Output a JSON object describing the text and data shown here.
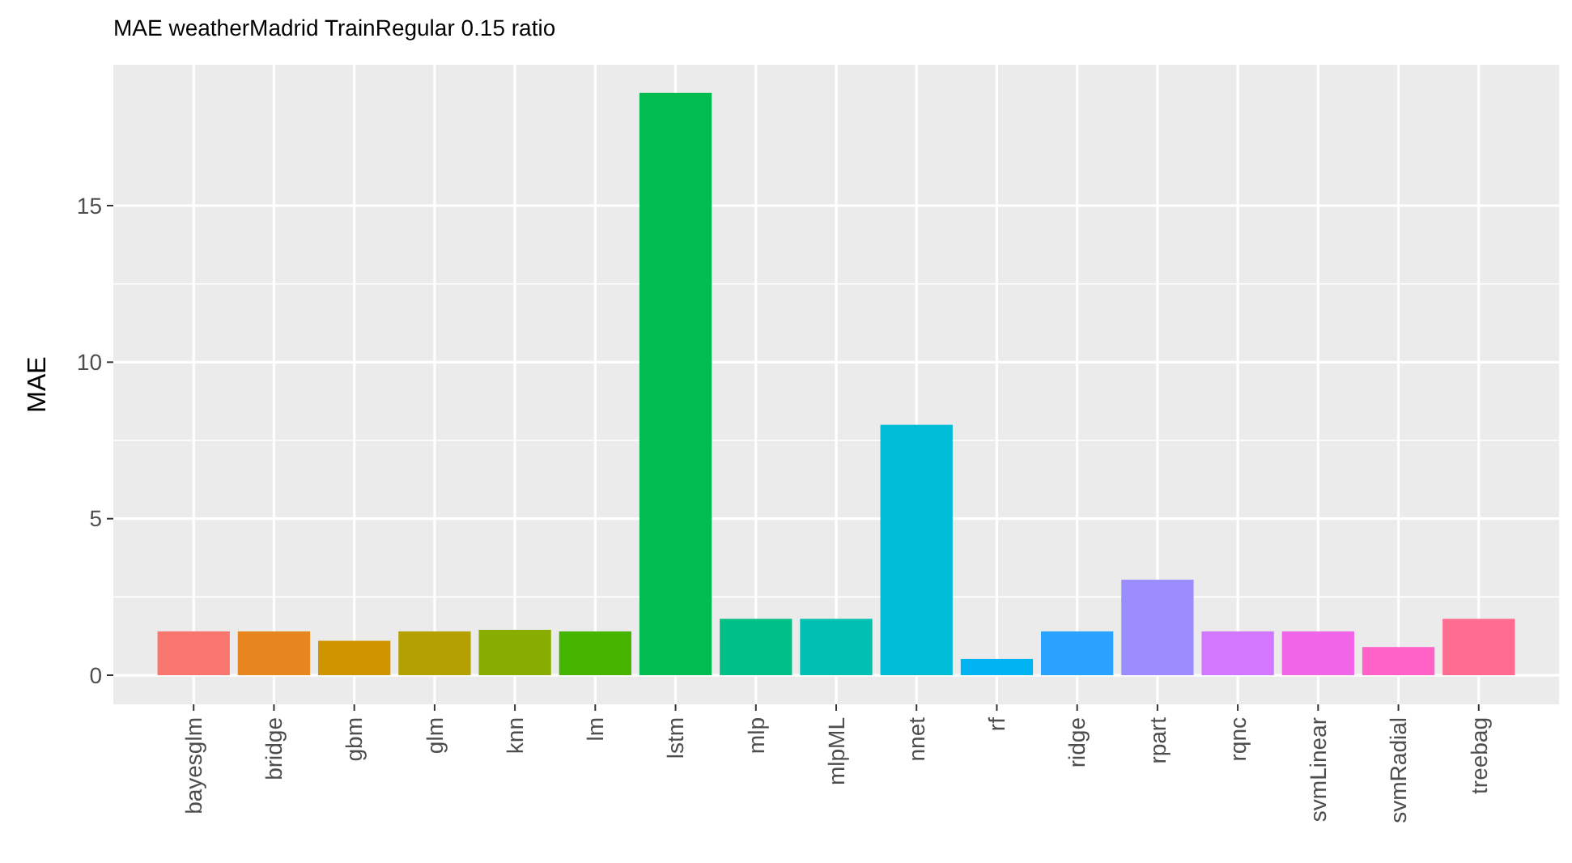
{
  "chart_data": {
    "type": "bar",
    "title": "MAE weatherMadrid TrainRegular 0.15 ratio",
    "ylabel": "MAE",
    "categories": [
      "bayesglm",
      "bridge",
      "gbm",
      "glm",
      "knn",
      "lm",
      "lstm",
      "mlp",
      "mlpML",
      "nnet",
      "rf",
      "ridge",
      "rpart",
      "rqnc",
      "svmLinear",
      "svmRadial",
      "treebag"
    ],
    "values": [
      1.4,
      1.4,
      1.1,
      1.4,
      1.45,
      1.4,
      18.6,
      1.8,
      1.8,
      8.0,
      0.52,
      1.4,
      3.05,
      1.4,
      1.4,
      0.9,
      1.8
    ],
    "colors": [
      "#F8766D",
      "#E7851E",
      "#D09400",
      "#B2A100",
      "#89AC00",
      "#45B500",
      "#00BC51",
      "#00C087",
      "#00C0B2",
      "#00BCD6",
      "#00B3F2",
      "#29A3FF",
      "#9C8DFF",
      "#D277FF",
      "#F166E8",
      "#FF61C7",
      "#FF6C91"
    ],
    "ylim": [
      -0.93,
      19.5
    ],
    "yticks": [
      0,
      5,
      10,
      15
    ],
    "grid": true
  }
}
